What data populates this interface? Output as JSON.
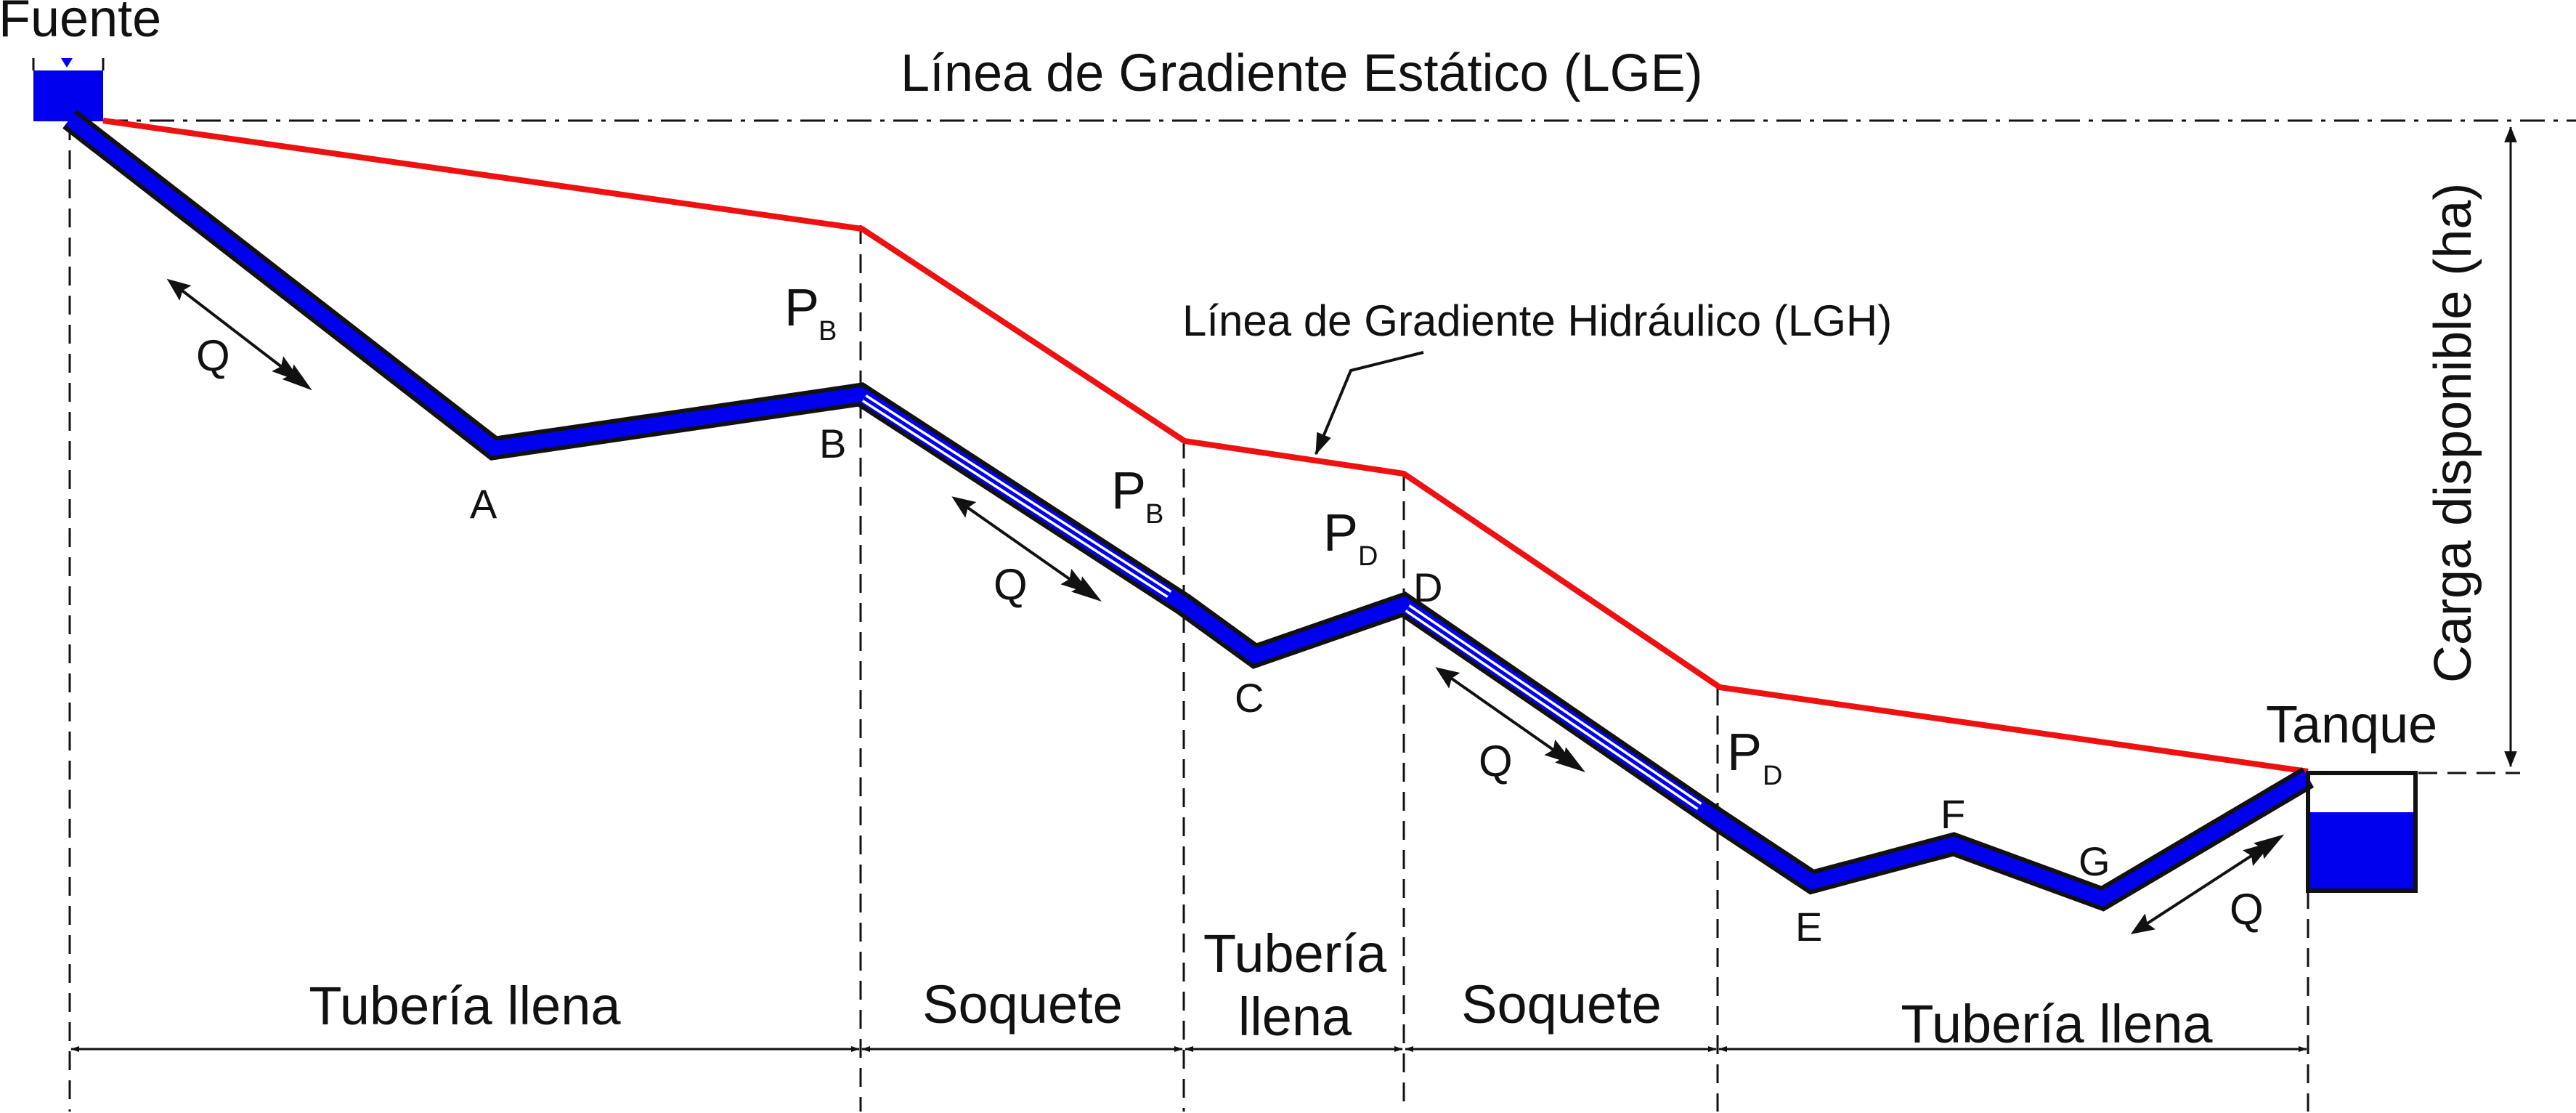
{
  "labels": {
    "source": "Fuente",
    "tank": "Tanque",
    "static_line": "Línea de Gradiente Estático (LGE)",
    "hydraulic_line": "Línea de Gradiente Hidráulico (LGH)",
    "available_head": "Carga disponible (ha)",
    "flow": "Q"
  },
  "points": {
    "A": "A",
    "B": "B",
    "C": "C",
    "D": "D",
    "E": "E",
    "F": "F",
    "G": "G"
  },
  "pressures": [
    {
      "main": "P",
      "sub": "B"
    },
    {
      "main": "P",
      "sub": "B"
    },
    {
      "main": "P",
      "sub": "D"
    },
    {
      "main": "P",
      "sub": "D"
    }
  ],
  "segments": [
    {
      "line1": "Tubería llena"
    },
    {
      "line1": "Soquete"
    },
    {
      "line1": "Tubería",
      "line2": "llena"
    },
    {
      "line1": "Soquete"
    },
    {
      "line1": "Tubería llena"
    }
  ],
  "colors": {
    "pipe": "#0000ee",
    "hgl": "#ee1111",
    "ink": "#111111",
    "water": "#0000ee"
  }
}
